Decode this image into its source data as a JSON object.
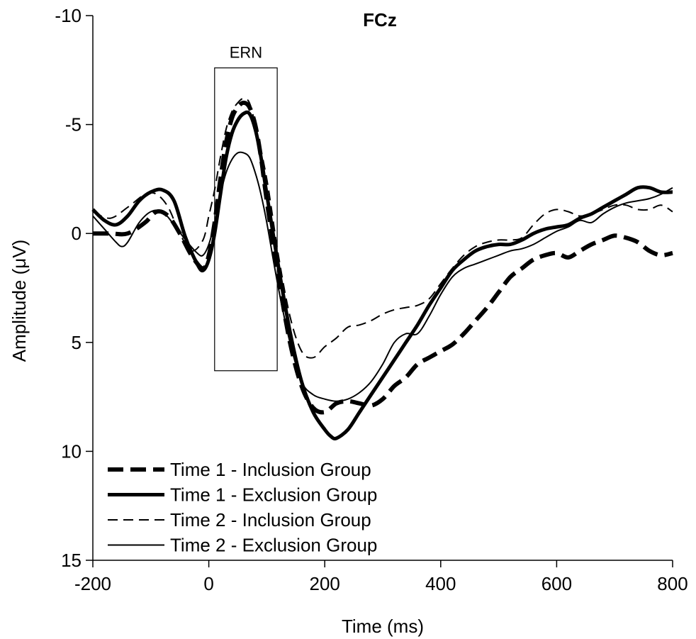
{
  "chart_data": {
    "type": "line",
    "title": "FCz",
    "xlabel": "Time (ms)",
    "ylabel": "Amplitude (μV)",
    "xlim": [
      -200,
      800
    ],
    "ylim": [
      -10,
      15
    ],
    "y_inverted": true,
    "xticks": [
      -200,
      0,
      200,
      400,
      600,
      800
    ],
    "yticks": [
      -10,
      -5,
      0,
      5,
      10,
      15
    ],
    "grid": false,
    "legend_position": "bottom-left",
    "annotations": [
      {
        "label": "ERN",
        "x_range": [
          10,
          118
        ],
        "y_range": [
          -7.6,
          6.3
        ]
      }
    ],
    "series": [
      {
        "name": "Time 1 - Inclusion Group",
        "style": "thick-dashed",
        "x": [
          -200,
          -170,
          -140,
          -110,
          -90,
          -70,
          -50,
          -30,
          -10,
          0,
          10,
          20,
          30,
          40,
          50,
          60,
          70,
          80,
          90,
          100,
          120,
          140,
          160,
          180,
          200,
          220,
          240,
          260,
          280,
          300,
          320,
          340,
          360,
          380,
          400,
          420,
          440,
          460,
          480,
          500,
          520,
          540,
          560,
          580,
          600,
          620,
          640,
          660,
          680,
          700,
          720,
          740,
          760,
          780,
          800
        ],
        "y": [
          0,
          0,
          0,
          -0.5,
          -1.0,
          -0.8,
          0,
          1.0,
          1.6,
          1.0,
          -0.5,
          -2.5,
          -4.2,
          -5.3,
          -5.8,
          -6.0,
          -5.8,
          -5.0,
          -3.5,
          -1.5,
          2.0,
          5.0,
          7.0,
          8.0,
          8.2,
          7.8,
          7.7,
          7.8,
          7.9,
          7.6,
          7.0,
          6.6,
          6.0,
          5.7,
          5.4,
          5.1,
          4.6,
          4.0,
          3.4,
          2.7,
          2.0,
          1.6,
          1.2,
          1.0,
          0.9,
          1.1,
          0.8,
          0.5,
          0.3,
          0.1,
          0.2,
          0.4,
          0.8,
          1.0,
          0.9
        ]
      },
      {
        "name": "Time 1 - Exclusion Group",
        "style": "thick-solid",
        "x": [
          -200,
          -180,
          -160,
          -140,
          -120,
          -100,
          -80,
          -60,
          -40,
          -20,
          -10,
          0,
          10,
          20,
          30,
          40,
          50,
          60,
          70,
          80,
          90,
          100,
          120,
          140,
          160,
          180,
          200,
          210,
          220,
          240,
          260,
          280,
          300,
          320,
          340,
          360,
          380,
          400,
          420,
          440,
          460,
          480,
          500,
          520,
          540,
          560,
          580,
          600,
          620,
          640,
          660,
          680,
          700,
          720,
          740,
          760,
          780,
          800
        ],
        "y": [
          -1.1,
          -0.6,
          -0.4,
          -0.8,
          -1.5,
          -1.9,
          -2.0,
          -1.5,
          0.2,
          1.4,
          1.7,
          1.2,
          0,
          -1.8,
          -3.5,
          -4.6,
          -5.2,
          -5.5,
          -5.5,
          -4.8,
          -3.5,
          -1.8,
          1.5,
          4.5,
          6.8,
          8.2,
          9.0,
          9.3,
          9.4,
          9.0,
          8.2,
          7.4,
          6.6,
          5.8,
          5.0,
          4.2,
          3.3,
          2.5,
          1.7,
          1.2,
          0.8,
          0.6,
          0.5,
          0.5,
          0.3,
          0,
          -0.2,
          -0.3,
          -0.4,
          -0.7,
          -0.9,
          -1.2,
          -1.5,
          -1.8,
          -2.1,
          -2.1,
          -1.9,
          -1.9
        ]
      },
      {
        "name": "Time 2 - Inclusion Group",
        "style": "thin-dashed",
        "x": [
          -200,
          -170,
          -140,
          -110,
          -90,
          -70,
          -50,
          -30,
          -10,
          0,
          10,
          20,
          30,
          40,
          50,
          60,
          70,
          80,
          100,
          120,
          140,
          160,
          180,
          200,
          220,
          240,
          260,
          280,
          300,
          320,
          340,
          360,
          380,
          400,
          420,
          440,
          460,
          480,
          500,
          520,
          540,
          560,
          580,
          600,
          620,
          640,
          660,
          680,
          700,
          720,
          740,
          760,
          780,
          800
        ],
        "y": [
          -1.0,
          -0.7,
          -1.2,
          -1.8,
          -1.8,
          -1.2,
          0,
          0.8,
          0.3,
          -0.8,
          -2.0,
          -3.5,
          -4.8,
          -5.6,
          -6.0,
          -6.2,
          -6.0,
          -5.0,
          -2.5,
          1.0,
          3.8,
          5.4,
          5.7,
          5.2,
          4.8,
          4.3,
          4.2,
          4.0,
          3.7,
          3.5,
          3.4,
          3.3,
          3.0,
          2.3,
          1.6,
          1.0,
          0.6,
          0.4,
          0.3,
          0.3,
          0.2,
          -0.4,
          -0.9,
          -1.1,
          -1.0,
          -0.8,
          -0.9,
          -1.1,
          -1.3,
          -1.3,
          -1.1,
          -1.1,
          -1.3,
          -1.0
        ]
      },
      {
        "name": "Time 2 - Exclusion Group",
        "style": "thin-solid",
        "x": [
          -200,
          -180,
          -160,
          -150,
          -140,
          -120,
          -100,
          -80,
          -60,
          -40,
          -20,
          -10,
          0,
          10,
          20,
          30,
          40,
          50,
          60,
          70,
          80,
          90,
          100,
          120,
          140,
          160,
          180,
          200,
          220,
          240,
          260,
          280,
          300,
          320,
          340,
          360,
          380,
          400,
          420,
          440,
          460,
          480,
          500,
          520,
          540,
          560,
          580,
          600,
          620,
          640,
          660,
          680,
          700,
          720,
          740,
          760,
          780,
          800
        ],
        "y": [
          -0.8,
          -0.2,
          0.4,
          0.6,
          0.4,
          -0.5,
          -1.0,
          -1.0,
          -0.4,
          0.3,
          0.9,
          1.0,
          0.5,
          -0.5,
          -1.8,
          -2.8,
          -3.4,
          -3.7,
          -3.7,
          -3.5,
          -2.8,
          -1.8,
          -0.5,
          2.5,
          5.0,
          6.8,
          7.4,
          7.6,
          7.7,
          7.6,
          7.3,
          6.8,
          6.0,
          5.0,
          4.6,
          4.6,
          3.8,
          2.8,
          2.0,
          1.6,
          1.4,
          1.2,
          1.0,
          0.8,
          0.7,
          0.5,
          0.2,
          -0.1,
          -0.3,
          -0.6,
          -0.5,
          -0.9,
          -1.2,
          -1.4,
          -1.5,
          -1.6,
          -1.8,
          -2.1
        ]
      }
    ]
  }
}
